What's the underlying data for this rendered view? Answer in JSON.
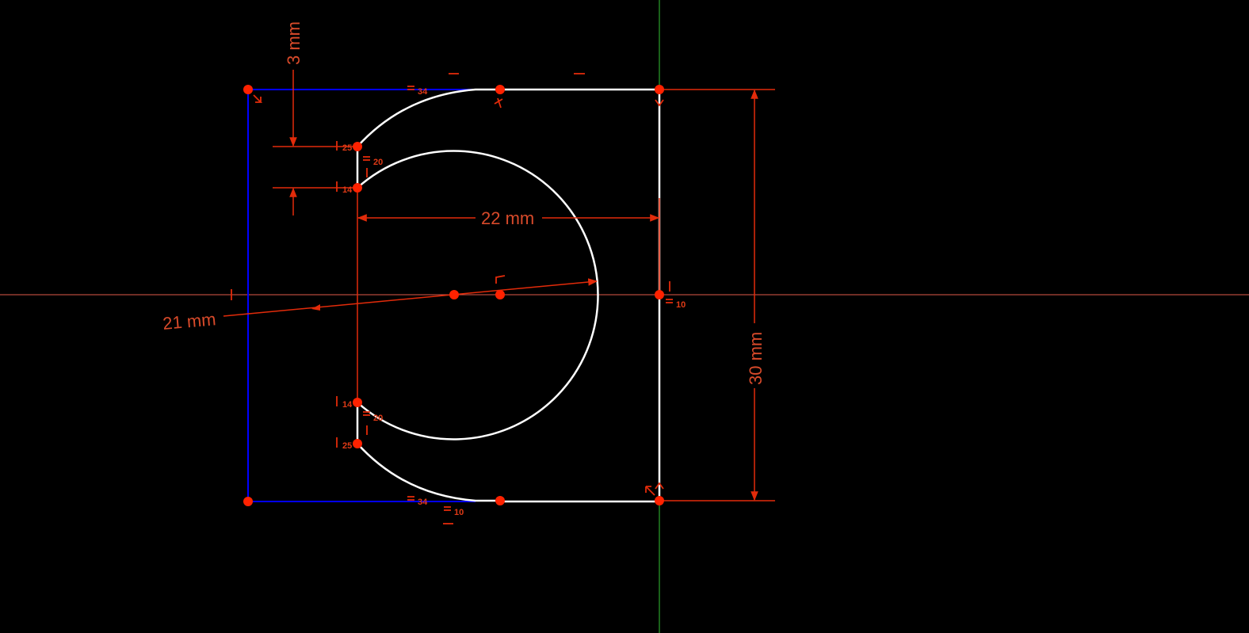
{
  "dimensions": {
    "vertical_gap": "3 mm",
    "horizontal_width": "22 mm",
    "radius": "21 mm",
    "height": "30 mm"
  },
  "constraint_labels": {
    "top_equal": "34",
    "bottom_equal": "34",
    "upper_slot_top": "25",
    "upper_slot_bottom": "14",
    "lower_slot_top": "14",
    "lower_slot_bottom": "25",
    "upper_arc_equal": "20",
    "lower_arc_equal": "20",
    "right_point": "10",
    "bottom_point": "10"
  },
  "colors": {
    "geometry": "#ffffff",
    "construction": "#0000ff",
    "constraint": "#e22b0a",
    "point": "#ff2200",
    "h_axis": "#e05a4a",
    "v_axis": "#35c235",
    "dim_text": "#d84a2a",
    "background": "#000000"
  }
}
